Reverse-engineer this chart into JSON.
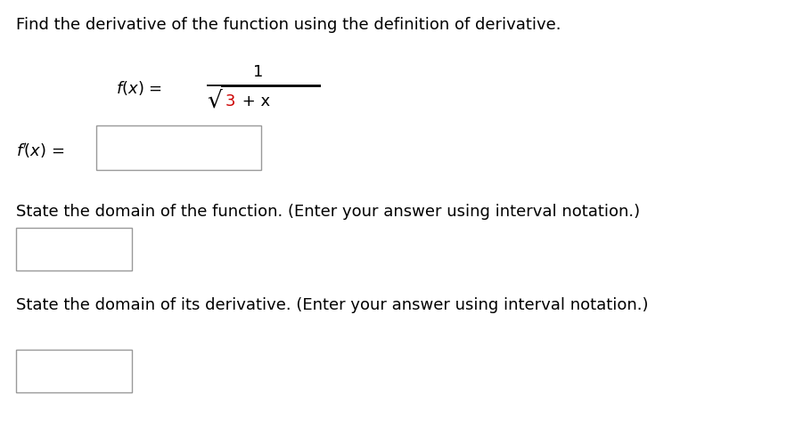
{
  "title": "Find the derivative of the function using the definition of derivative.",
  "title_fontsize": 13.0,
  "background_color": "#ffffff",
  "text_color": "#000000",
  "red_color": "#cc0000",
  "state_domain_func": "State the domain of the function. (Enter your answer using interval notation.)",
  "state_domain_deriv": "State the domain of its derivative. (Enter your answer using interval notation.)"
}
